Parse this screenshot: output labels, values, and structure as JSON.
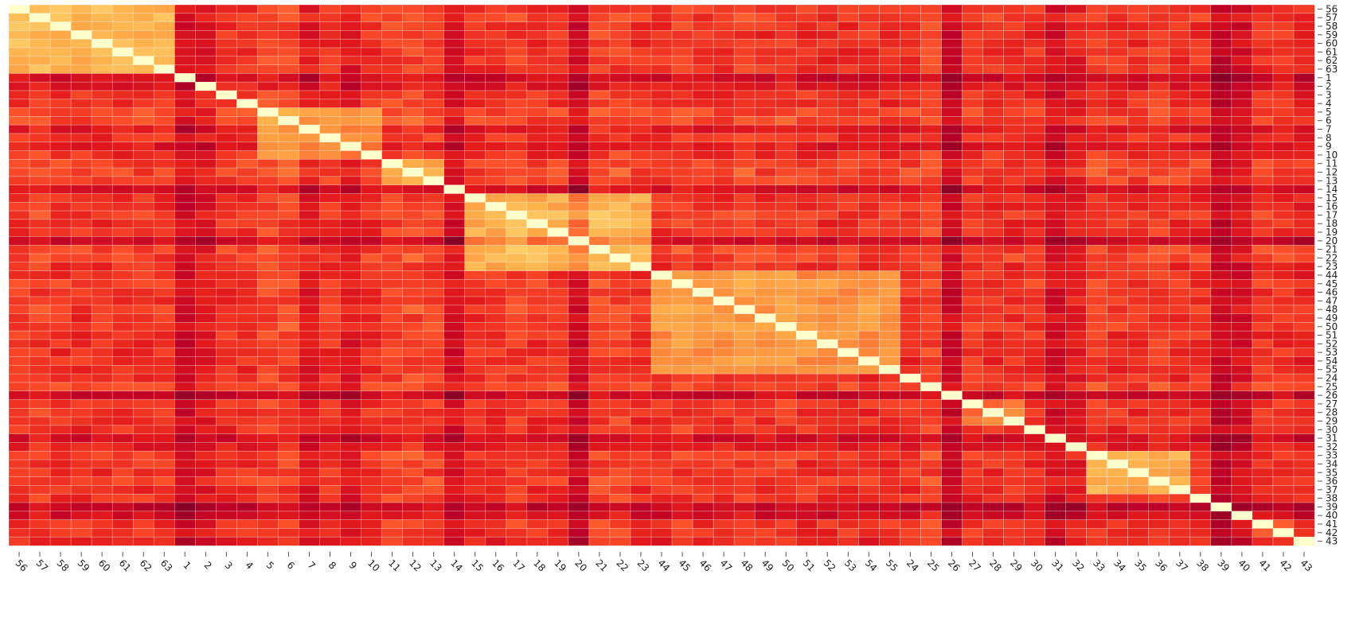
{
  "chart_data": {
    "type": "heatmap",
    "title": "",
    "xlabel": "",
    "ylabel": "",
    "value_range": [
      0,
      1
    ],
    "grid": false,
    "legend": "none",
    "labels": [
      "56",
      "57",
      "58",
      "59",
      "60",
      "61",
      "62",
      "63",
      "1",
      "2",
      "3",
      "4",
      "5",
      "6",
      "7",
      "8",
      "9",
      "10",
      "11",
      "12",
      "13",
      "14",
      "15",
      "16",
      "17",
      "18",
      "19",
      "20",
      "21",
      "22",
      "23",
      "44",
      "45",
      "46",
      "47",
      "48",
      "49",
      "50",
      "51",
      "52",
      "53",
      "54",
      "55",
      "24",
      "25",
      "26",
      "27",
      "28",
      "29",
      "30",
      "31",
      "32",
      "33",
      "34",
      "35",
      "36",
      "37",
      "38",
      "39",
      "40",
      "41",
      "42",
      "43"
    ],
    "x_tick_rotation": 45,
    "colormap": [
      "#ffffcc",
      "#ffeda0",
      "#fed976",
      "#feb24c",
      "#fd8d3c",
      "#fc4e2a",
      "#e31a1c",
      "#bd0026",
      "#800026"
    ],
    "diagonal_value": 1.0,
    "blocks": [
      {
        "labels": [
          "56",
          "57",
          "58",
          "59",
          "60",
          "61",
          "62",
          "63"
        ],
        "within": 0.62
      },
      {
        "labels": [
          "1",
          "2",
          "3",
          "4"
        ],
        "within": 0.34
      },
      {
        "labels": [
          "5",
          "6",
          "7",
          "8",
          "9",
          "10"
        ],
        "within": 0.55
      },
      {
        "labels": [
          "11",
          "12",
          "13"
        ],
        "within": 0.5
      },
      {
        "labels": [
          "15",
          "16",
          "17",
          "18",
          "19",
          "20",
          "21",
          "22",
          "23"
        ],
        "within": 0.6
      },
      {
        "labels": [
          "44",
          "45",
          "46",
          "47",
          "48",
          "49",
          "50",
          "51",
          "52",
          "53",
          "54",
          "55"
        ],
        "within": 0.52
      },
      {
        "labels": [
          "27",
          "28",
          "29"
        ],
        "within": 0.45
      },
      {
        "labels": [
          "31",
          "32"
        ],
        "within": 0.3
      },
      {
        "labels": [
          "33",
          "34",
          "35",
          "36",
          "37"
        ],
        "within": 0.58
      },
      {
        "labels": [
          "41",
          "42"
        ],
        "within": 0.35
      }
    ],
    "off_block_baseline": 0.3,
    "label_strength": {
      "1": -0.12,
      "2": -0.07,
      "14": -0.1,
      "20": -0.13,
      "26": -0.13,
      "31": -0.1,
      "32": -0.05,
      "39": -0.15,
      "40": -0.1,
      "9": -0.07,
      "7": -0.06,
      "43": -0.03,
      "25": 0.05,
      "5": 0.05,
      "6": 0.04,
      "11": 0.04,
      "12": 0.05,
      "13": 0.03,
      "17": 0.03,
      "21": 0.04,
      "22": 0.04,
      "45": 0.03,
      "48": 0.03,
      "50": 0.03,
      "56": 0.02,
      "57": 0.03,
      "33": 0.02,
      "36": 0.03
    }
  }
}
